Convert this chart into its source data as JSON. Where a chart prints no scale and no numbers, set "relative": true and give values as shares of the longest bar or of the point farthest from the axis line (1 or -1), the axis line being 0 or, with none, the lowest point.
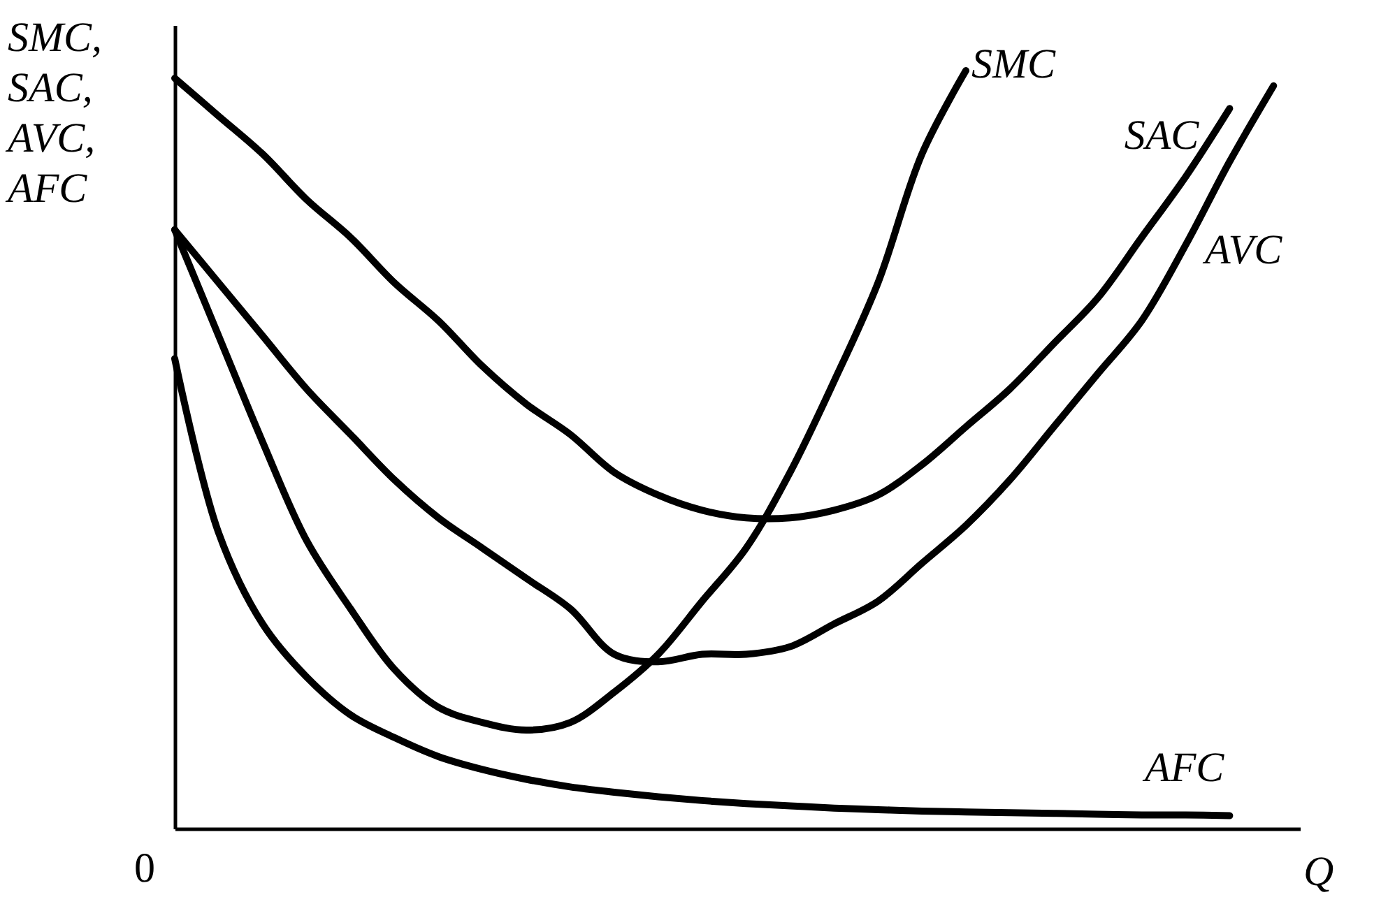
{
  "chart_data": {
    "type": "line",
    "relative": true,
    "xlabel": "Q",
    "ylabel": "SMC, SAC, AVC, AFC",
    "annotations": [
      "0"
    ],
    "categories": [
      null,
      null,
      null,
      null,
      null,
      null,
      null,
      null,
      null,
      null,
      null,
      null,
      null,
      null,
      null,
      null,
      null,
      null,
      null,
      null,
      null,
      null,
      null,
      null,
      null,
      null
    ],
    "series": [
      {
        "name": "SMC",
        "color": "#000000",
        "values": [
          0.79,
          0.65,
          0.51,
          0.38,
          0.29,
          0.21,
          0.16,
          0.14,
          0.13,
          0.14,
          0.18,
          0.23,
          0.3,
          0.37,
          0.47,
          0.59,
          0.72,
          0.89,
          1,
          null,
          null,
          null,
          null,
          null,
          null,
          null
        ]
      },
      {
        "name": "SAC",
        "color": "#000000",
        "values": [
          0.99,
          0.94,
          0.89,
          0.83,
          0.78,
          0.72,
          0.67,
          0.61,
          0.56,
          0.52,
          0.47,
          0.44,
          0.42,
          0.41,
          0.41,
          0.42,
          0.44,
          0.48,
          0.53,
          0.58,
          0.64,
          0.7,
          0.78,
          0.86,
          0.95,
          null
        ]
      },
      {
        "name": "AVC",
        "color": "#000000",
        "values": [
          0.79,
          0.72,
          0.65,
          0.58,
          0.52,
          0.46,
          0.41,
          0.37,
          0.33,
          0.29,
          0.23,
          0.22,
          0.23,
          0.23,
          0.24,
          0.27,
          0.3,
          0.35,
          0.4,
          0.46,
          0.53,
          0.6,
          0.67,
          0.77,
          0.88,
          0.98
        ]
      },
      {
        "name": "AFC",
        "color": "#000000",
        "values": [
          0.62,
          0.39,
          0.27,
          0.2,
          0.15,
          0.12,
          0.095,
          0.078,
          0.065,
          0.055,
          0.048,
          0.042,
          0.037,
          0.033,
          0.03,
          0.027,
          0.025,
          0.023,
          0.022,
          0.021,
          0.02,
          0.019,
          0.018,
          0.018,
          0.017,
          null
        ]
      }
    ]
  }
}
